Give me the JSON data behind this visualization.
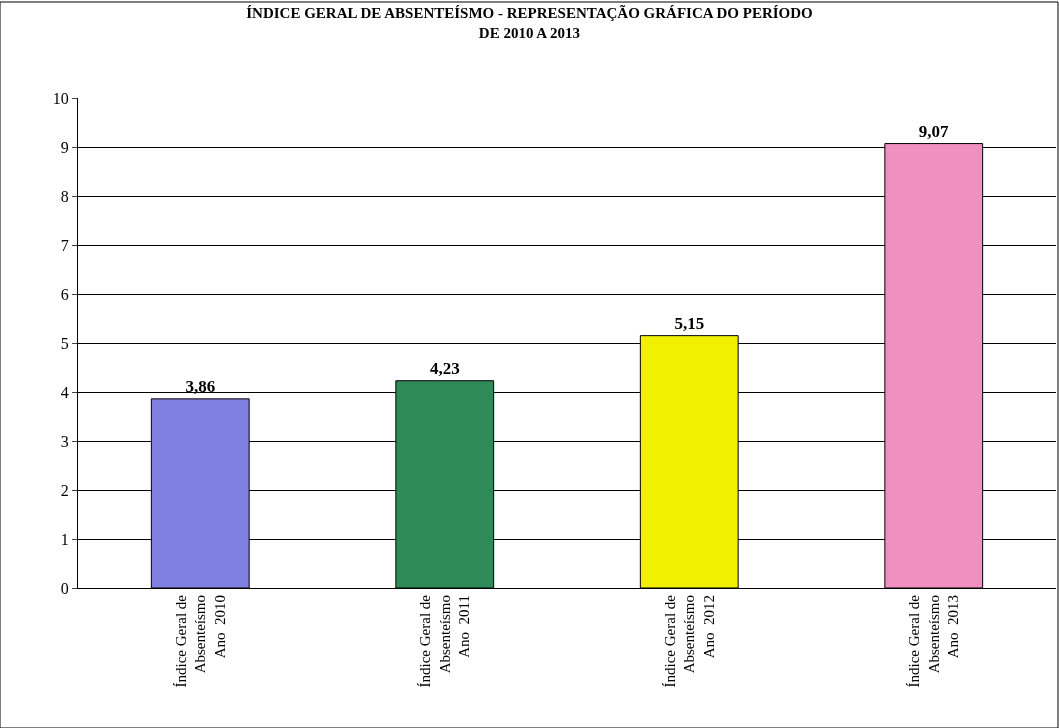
{
  "chart_data": {
    "type": "bar",
    "title": "ÍNDICE GERAL DE ABSENTEÍSMO - REPRESENTAÇÃO GRÁFICA DO PERÍODO\nDE 2010 A 2013",
    "categories": [
      "Índice Geral de\nAbsenteísmo\nAno  2010",
      "Índice Geral de\nAbsenteísmo\nAno  2011",
      "Índice Geral de\nAbsenteísmo\nAno  2012",
      "Índice Geral de\nAbsenteísmo\nAno  2013"
    ],
    "values": [
      3.86,
      4.23,
      5.15,
      9.07
    ],
    "colors": [
      "#8080e0",
      "#2e8b57",
      "#f0f000",
      "#f090c0"
    ],
    "value_labels": [
      "3,86",
      "4,23",
      "5,15",
      "9,07"
    ],
    "ylim": [
      0,
      10
    ],
    "yticks": [
      0,
      1,
      2,
      3,
      4,
      5,
      6,
      7,
      8,
      9,
      10
    ],
    "grid": "y"
  }
}
